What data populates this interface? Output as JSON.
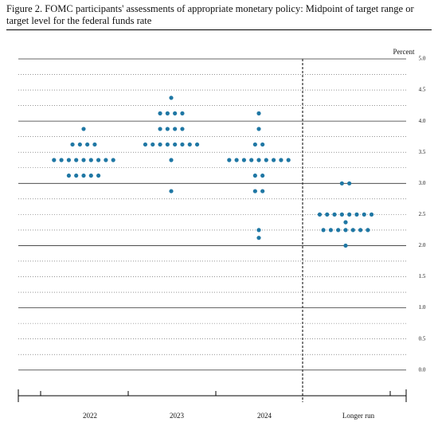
{
  "chart_data": {
    "type": "dot",
    "title": "Figure 2.  FOMC participants' assessments of appropriate monetary policy: Midpoint of target range or target level for the federal funds rate",
    "y_label": "Percent",
    "categories": [
      "2022",
      "2023",
      "2024",
      "Longer run"
    ],
    "values": [
      [
        3.875,
        3.625,
        3.625,
        3.625,
        3.625,
        3.375,
        3.375,
        3.375,
        3.375,
        3.375,
        3.375,
        3.375,
        3.375,
        3.375,
        3.125,
        3.125,
        3.125,
        3.125,
        3.125
      ],
      [
        4.375,
        4.125,
        4.125,
        4.125,
        4.125,
        3.875,
        3.875,
        3.875,
        3.875,
        3.625,
        3.625,
        3.625,
        3.625,
        3.625,
        3.625,
        3.625,
        3.625,
        3.375,
        2.875
      ],
      [
        4.125,
        3.875,
        3.625,
        3.625,
        3.375,
        3.375,
        3.375,
        3.375,
        3.375,
        3.375,
        3.375,
        3.375,
        3.375,
        3.125,
        3.125,
        2.875,
        2.875,
        2.25,
        2.125
      ],
      [
        3.0,
        3.0,
        2.5,
        2.5,
        2.5,
        2.5,
        2.5,
        2.5,
        2.5,
        2.5,
        2.375,
        2.25,
        2.25,
        2.25,
        2.25,
        2.25,
        2.25,
        2.25,
        2.0
      ]
    ],
    "color": "#1f77a4",
    "ylim": [
      -0.4,
      5.0
    ],
    "yticks": [
      {
        "value": 0,
        "label": "0.0"
      },
      0.5,
      {
        "value": 1,
        "label": "1.0"
      },
      1.5,
      {
        "value": 2,
        "label": "2.0"
      },
      2.5,
      {
        "value": 3,
        "label": "3.0"
      },
      3.5,
      {
        "value": 4,
        "label": "4.0"
      },
      4.5,
      {
        "value": 5,
        "label": "5.0"
      }
    ],
    "minor_yticks": [
      0.25,
      0.75,
      1.25,
      1.75,
      2.25,
      2.75,
      3.25,
      3.75,
      4.25,
      4.75
    ],
    "grid": true
  }
}
